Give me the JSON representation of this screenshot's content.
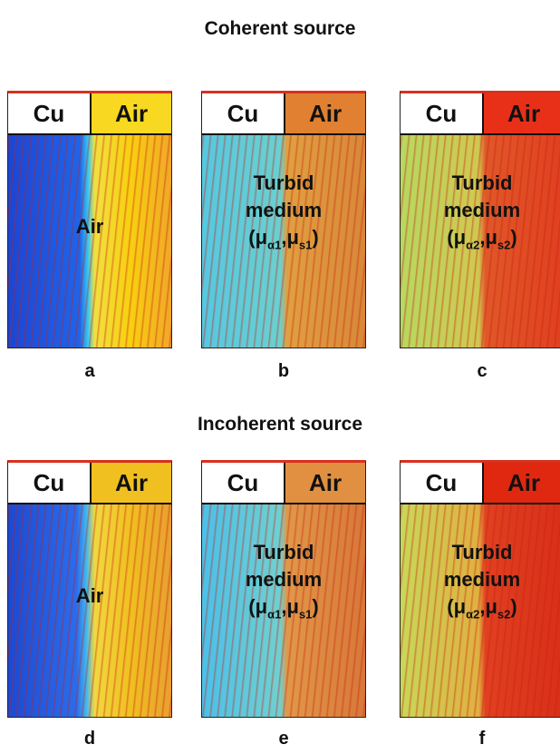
{
  "sections": [
    {
      "title": "Coherent source",
      "panels": [
        {
          "left": "Cu",
          "right": "Air",
          "lines": [
            "Air"
          ],
          "letter": "a"
        },
        {
          "left": "Cu",
          "right": "Air",
          "lines": [
            "Turbid",
            "medium"
          ],
          "formula": [
            "(μ",
            "α1",
            ",μ",
            "s1",
            ")"
          ],
          "letter": "b"
        },
        {
          "left": "Cu",
          "right": "Air",
          "lines": [
            "Turbid",
            "medium"
          ],
          "formula": [
            "(μ",
            "α2",
            ",μ",
            "s2",
            ")"
          ],
          "letter": "c"
        }
      ]
    },
    {
      "title": "Incoherent source",
      "panels": [
        {
          "left": "Cu",
          "right": "Air",
          "lines": [
            "Air"
          ],
          "letter": "d"
        },
        {
          "left": "Cu",
          "right": "Air",
          "lines": [
            "Turbid",
            "medium"
          ],
          "formula": [
            "(μ",
            "α1",
            ",μ",
            "s1",
            ")"
          ],
          "letter": "e"
        },
        {
          "left": "Cu",
          "right": "Air",
          "lines": [
            "Turbid",
            "medium"
          ],
          "formula": [
            "(μ",
            "α2",
            ",μ",
            "s2",
            ")"
          ],
          "letter": "f"
        }
      ]
    }
  ]
}
